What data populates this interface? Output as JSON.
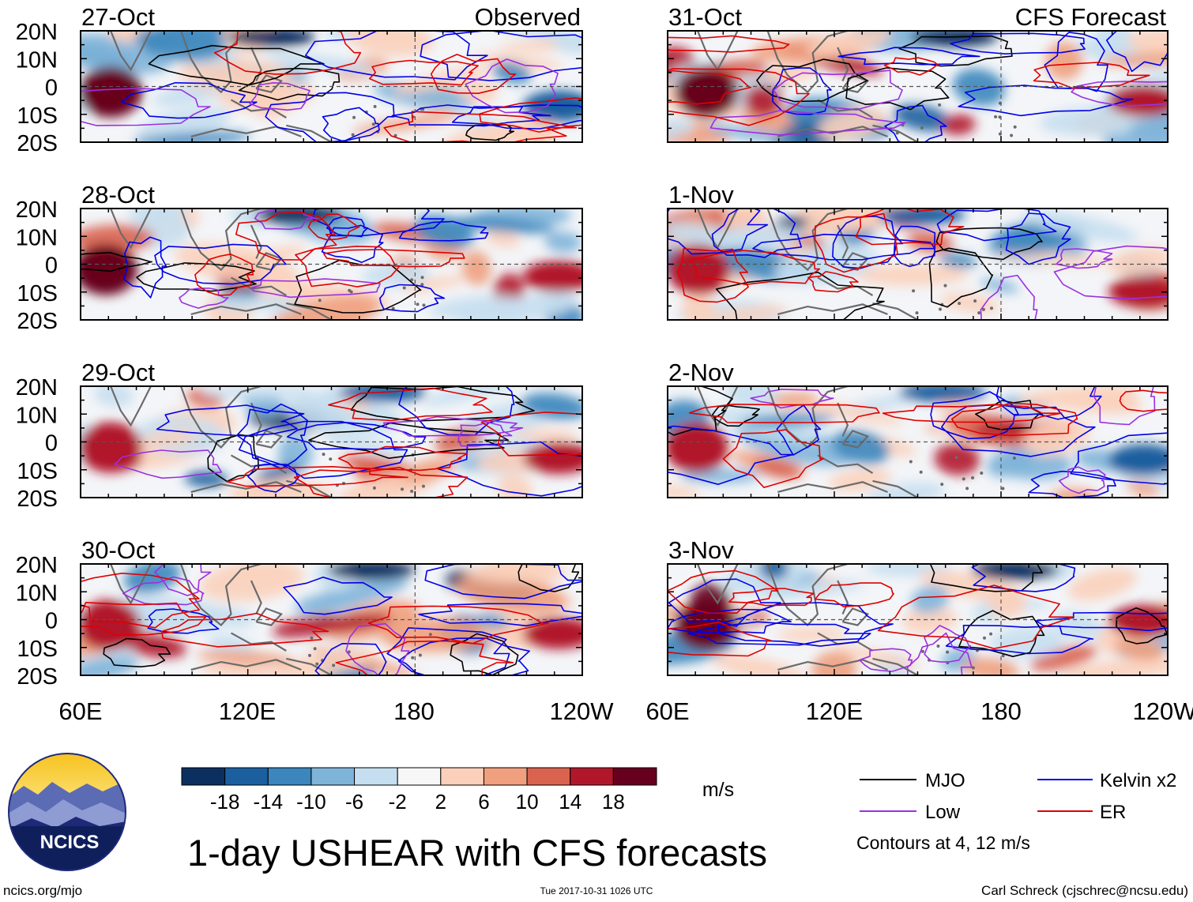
{
  "figure_title": "1-day USHEAR with CFS forecasts",
  "left_column_label": "Observed",
  "right_column_label": "CFS Forecast",
  "panels_observed": [
    {
      "date": "27-Oct"
    },
    {
      "date": "28-Oct"
    },
    {
      "date": "29-Oct"
    },
    {
      "date": "30-Oct"
    }
  ],
  "panels_forecast": [
    {
      "date": "31-Oct"
    },
    {
      "date": "1-Nov"
    },
    {
      "date": "2-Nov"
    },
    {
      "date": "3-Nov"
    }
  ],
  "lat_labels": [
    "20N",
    "10N",
    "0",
    "10S",
    "20S"
  ],
  "lon_labels": [
    "60E",
    "120E",
    "180",
    "120W"
  ],
  "colorbar": {
    "unit": "m/s",
    "tick_labels": [
      "-18",
      "-14",
      "-10",
      "-6",
      "-2",
      "2",
      "6",
      "10",
      "14",
      "18"
    ],
    "colors": [
      "#0b2f5e",
      "#1c5f9f",
      "#3a86bd",
      "#7fb4d9",
      "#c6dff0",
      "#f7f7f7",
      "#fbd0bb",
      "#f0a07e",
      "#d9634f",
      "#b1172b",
      "#67001f"
    ]
  },
  "legend": {
    "items": [
      {
        "label": "MJO",
        "color": "#000000"
      },
      {
        "label": "Kelvin x2",
        "color": "#0000e6"
      },
      {
        "label": "Low",
        "color": "#9b30e0"
      },
      {
        "label": "ER",
        "color": "#e00000"
      }
    ],
    "note": "Contours at 4, 12 m/s"
  },
  "logo_text": "NCICS",
  "footer": {
    "left": "ncics.org/mjo",
    "center": "Tue 2017-10-31 1026 UTC",
    "right": "Carl Schreck (cjschrec@ncsu.edu)"
  }
}
